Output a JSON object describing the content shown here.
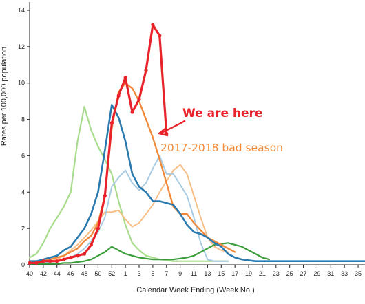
{
  "chart_data": {
    "type": "line",
    "ylabel": "Rates per 100,000 population",
    "xlabel": "Calendar Week Ending (Week No.)",
    "ylim": [
      0,
      14
    ],
    "yticks": [
      0,
      2,
      4,
      6,
      8,
      10,
      12,
      14
    ],
    "xlim": [
      40,
      36
    ],
    "xticks": [
      "40",
      "42",
      "44",
      "46",
      "48",
      "50",
      "52",
      "1",
      "3",
      "5",
      "7",
      "9",
      "11",
      "13",
      "15",
      "17",
      "19",
      "21",
      "23",
      "25",
      "27",
      "29",
      "31",
      "33",
      "35"
    ],
    "annotations": [
      {
        "text": "We are here",
        "color": "#e8232a"
      },
      {
        "text": "2017-2018 bad season",
        "color": "#f08a3a"
      }
    ],
    "series": [
      {
        "color": "#a8dc8c",
        "width": 2.2,
        "x": [
          40,
          41,
          42,
          43,
          44,
          45,
          46,
          47,
          48,
          49,
          50,
          51,
          52,
          53,
          54,
          55,
          56,
          57,
          58,
          59,
          60,
          61,
          62,
          63,
          64,
          65,
          66,
          67,
          68,
          69
        ],
        "y": [
          0.4,
          0.6,
          1.2,
          2.0,
          2.6,
          3.2,
          4.0,
          6.8,
          8.7,
          7.4,
          6.5,
          5.8,
          5.0,
          3.5,
          2.2,
          1.2,
          0.8,
          0.5,
          0.4,
          0.3,
          0.25,
          0.2,
          0.2,
          0.2,
          0.2,
          0.2,
          0.2,
          0.2,
          0.2,
          0.2
        ]
      },
      {
        "color": "#f7be86",
        "width": 2.0,
        "x": [
          40,
          41,
          42,
          43,
          44,
          45,
          46,
          47,
          48,
          49,
          50,
          51,
          52,
          53,
          54,
          55,
          56,
          57,
          58,
          59,
          60,
          61,
          62,
          63,
          64,
          65,
          66,
          67,
          68,
          69
        ],
        "y": [
          0.1,
          0.1,
          0.1,
          0.2,
          0.3,
          0.5,
          0.8,
          1.1,
          1.5,
          1.9,
          2.4,
          2.9,
          2.9,
          3.0,
          2.5,
          2.1,
          2.3,
          2.8,
          3.3,
          4.0,
          4.6,
          5.2,
          5.5,
          5.0,
          3.8,
          2.6,
          1.5,
          1.0,
          0.8,
          0.7
        ]
      },
      {
        "color": "#a9cce3",
        "width": 2.0,
        "x": [
          40,
          41,
          42,
          43,
          44,
          45,
          46,
          47,
          48,
          49,
          50,
          51,
          52,
          53,
          54,
          55,
          56,
          57,
          58,
          59,
          60,
          61,
          62,
          63,
          64,
          65,
          66,
          67,
          68,
          69
        ],
        "y": [
          0.1,
          0.1,
          0.1,
          0.15,
          0.2,
          0.3,
          0.4,
          0.6,
          0.9,
          1.3,
          1.8,
          2.6,
          4.3,
          4.8,
          5.2,
          4.5,
          4.1,
          4.5,
          5.3,
          6.0,
          5.0,
          5.0,
          4.4,
          3.8,
          2.6,
          1.2,
          0.3,
          0.2,
          0.2,
          0.2
        ]
      },
      {
        "color": "#3a9e3a",
        "width": 2.2,
        "x": [
          40,
          41,
          42,
          43,
          44,
          45,
          46,
          47,
          48,
          49,
          50,
          51,
          52,
          53,
          54,
          55,
          56,
          57,
          58,
          59,
          60,
          61,
          62,
          63,
          64,
          65,
          66,
          67,
          68,
          69,
          70,
          71,
          72,
          73,
          74,
          75
        ],
        "y": [
          0.05,
          0.05,
          0.05,
          0.05,
          0.05,
          0.1,
          0.1,
          0.15,
          0.2,
          0.3,
          0.5,
          0.7,
          1.0,
          0.8,
          0.6,
          0.5,
          0.4,
          0.35,
          0.3,
          0.3,
          0.3,
          0.3,
          0.35,
          0.4,
          0.5,
          0.7,
          0.9,
          1.1,
          1.15,
          1.2,
          1.1,
          1.0,
          0.8,
          0.6,
          0.4,
          0.3
        ]
      },
      {
        "color": "#f08a3a",
        "width": 2.4,
        "x": [
          40,
          41,
          42,
          43,
          44,
          45,
          46,
          47,
          48,
          49,
          50,
          51,
          52,
          53,
          54,
          55,
          56,
          57,
          58,
          59,
          60,
          61,
          62,
          63,
          64,
          65,
          66,
          67,
          68,
          69,
          70
        ],
        "y": [
          0.2,
          0.2,
          0.2,
          0.3,
          0.4,
          0.5,
          0.7,
          0.9,
          1.3,
          1.6,
          2.3,
          3.8,
          7.5,
          9.5,
          10.0,
          9.7,
          9.0,
          8.0,
          7.0,
          5.8,
          4.5,
          3.2,
          2.8,
          2.8,
          2.3,
          1.9,
          1.5,
          1.3,
          1.1,
          0.9,
          0.7
        ]
      },
      {
        "color": "#2a7ab0",
        "width": 2.6,
        "x": [
          40,
          41,
          42,
          43,
          44,
          45,
          46,
          47,
          48,
          49,
          50,
          51,
          52,
          53,
          54,
          55,
          56,
          57,
          58,
          59,
          60,
          61,
          62,
          63,
          64,
          65,
          66,
          67,
          68,
          69,
          70,
          71,
          72,
          73,
          74,
          75,
          76,
          77,
          78,
          79,
          80,
          81,
          82,
          83,
          84,
          85,
          86,
          87,
          88,
          89
        ],
        "y": [
          0.2,
          0.2,
          0.3,
          0.4,
          0.5,
          0.8,
          1.0,
          1.5,
          2.0,
          2.8,
          4.0,
          6.3,
          8.8,
          8.1,
          6.8,
          5.0,
          4.3,
          4.0,
          3.5,
          3.5,
          3.4,
          3.3,
          2.8,
          2.2,
          1.8,
          1.7,
          1.5,
          1.2,
          1.0,
          0.6,
          0.4,
          0.3,
          0.25,
          0.2,
          0.2,
          0.2,
          0.2,
          0.2,
          0.2,
          0.2,
          0.2,
          0.2,
          0.2,
          0.2,
          0.2,
          0.2,
          0.2,
          0.2,
          0.2,
          0.2
        ]
      },
      {
        "color": "#e8232a",
        "width": 3.2,
        "markers": true,
        "x": [
          40,
          41,
          42,
          43,
          44,
          45,
          46,
          47,
          48,
          49,
          50,
          51,
          52,
          53,
          54,
          55,
          56,
          57,
          58,
          59,
          60
        ],
        "y": [
          0.1,
          0.1,
          0.2,
          0.2,
          0.2,
          0.3,
          0.4,
          0.5,
          0.6,
          1.1,
          2.0,
          3.8,
          7.8,
          9.3,
          10.3,
          8.4,
          9.1,
          10.7,
          13.2,
          12.6,
          7.2
        ]
      }
    ]
  }
}
